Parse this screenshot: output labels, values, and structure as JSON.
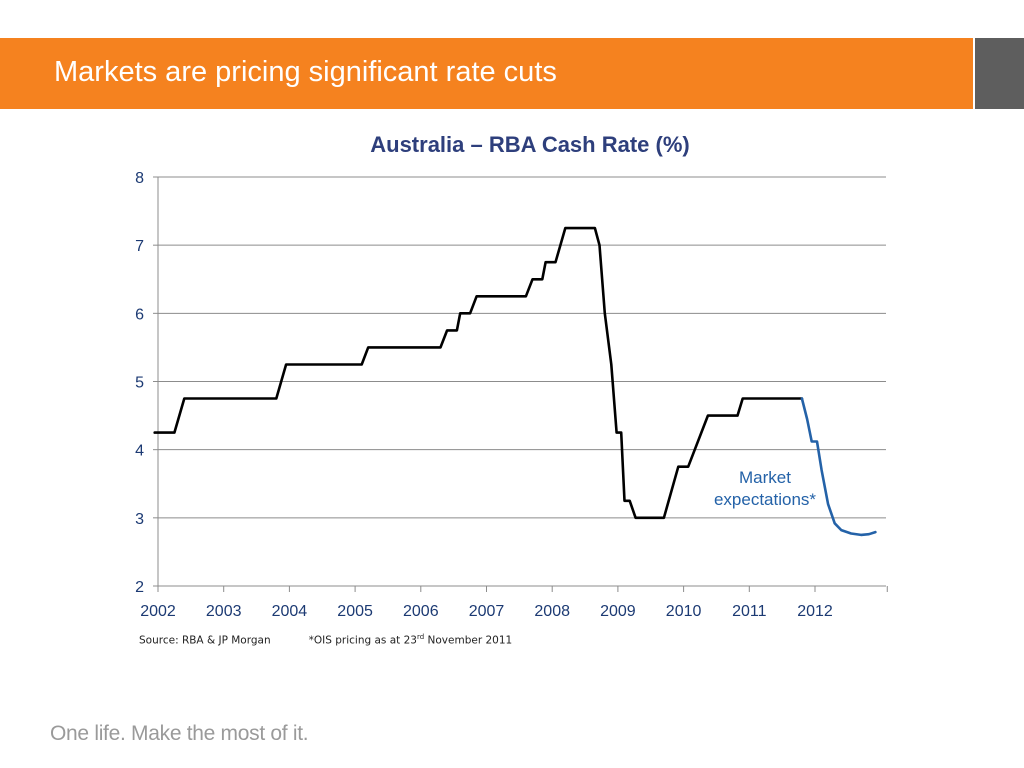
{
  "slide": {
    "title": "Markets are pricing significant rate cuts",
    "tagline": "One life. Make the most of it."
  },
  "colors": {
    "header_orange": "#f5821f",
    "header_grey": "#5e5e5e",
    "actual_line": "#000000",
    "expectation_line": "#2462a8",
    "title_text": "#2e3f7c",
    "tick_text": "#1c3a73",
    "grid": "#8c8c8c"
  },
  "source": {
    "text": "Source: RBA & JP Morgan",
    "note_prefix": "*OIS pricing as at 23",
    "note_sup": "rd",
    "note_suffix": " November 2011"
  },
  "chart_data": {
    "type": "line",
    "title": "Australia – RBA Cash Rate (%)",
    "xlabel": "",
    "ylabel": "",
    "xlim": [
      2002,
      2013.1
    ],
    "ylim": [
      2,
      8
    ],
    "yticks": [
      2,
      3,
      4,
      5,
      6,
      7,
      8
    ],
    "xticks": [
      "2002",
      "2003",
      "2004",
      "2005",
      "2006",
      "2007",
      "2008",
      "2009",
      "2010",
      "2011",
      "2012"
    ],
    "grid": "horizontal",
    "annotation": "Market\nexpectations*",
    "series": [
      {
        "style": "solid-black",
        "points": [
          [
            2001.95,
            4.25
          ],
          [
            2002.25,
            4.25
          ],
          [
            2002.4,
            4.75
          ],
          [
            2003.8,
            4.75
          ],
          [
            2003.95,
            5.25
          ],
          [
            2005.1,
            5.25
          ],
          [
            2005.2,
            5.5
          ],
          [
            2006.3,
            5.5
          ],
          [
            2006.4,
            5.75
          ],
          [
            2006.55,
            5.75
          ],
          [
            2006.6,
            6.0
          ],
          [
            2006.75,
            6.0
          ],
          [
            2006.85,
            6.25
          ],
          [
            2007.6,
            6.25
          ],
          [
            2007.7,
            6.5
          ],
          [
            2007.85,
            6.5
          ],
          [
            2007.9,
            6.75
          ],
          [
            2008.05,
            6.75
          ],
          [
            2008.2,
            7.25
          ],
          [
            2008.65,
            7.25
          ],
          [
            2008.72,
            7.0
          ],
          [
            2008.8,
            6.0
          ],
          [
            2008.9,
            5.25
          ],
          [
            2008.98,
            4.25
          ],
          [
            2009.05,
            4.25
          ],
          [
            2009.1,
            3.25
          ],
          [
            2009.18,
            3.25
          ],
          [
            2009.27,
            3.0
          ],
          [
            2009.7,
            3.0
          ],
          [
            2009.92,
            3.75
          ],
          [
            2010.07,
            3.75
          ],
          [
            2010.37,
            4.5
          ],
          [
            2010.82,
            4.5
          ],
          [
            2010.9,
            4.75
          ],
          [
            2011.8,
            4.75
          ]
        ]
      },
      {
        "style": "solid-blue",
        "points": [
          [
            2011.8,
            4.75
          ],
          [
            2011.88,
            4.45
          ],
          [
            2011.95,
            4.12
          ],
          [
            2012.03,
            4.12
          ],
          [
            2012.1,
            3.7
          ],
          [
            2012.2,
            3.2
          ],
          [
            2012.3,
            2.92
          ],
          [
            2012.4,
            2.82
          ],
          [
            2012.55,
            2.77
          ],
          [
            2012.7,
            2.75
          ],
          [
            2012.82,
            2.76
          ],
          [
            2012.92,
            2.79
          ]
        ]
      }
    ]
  }
}
